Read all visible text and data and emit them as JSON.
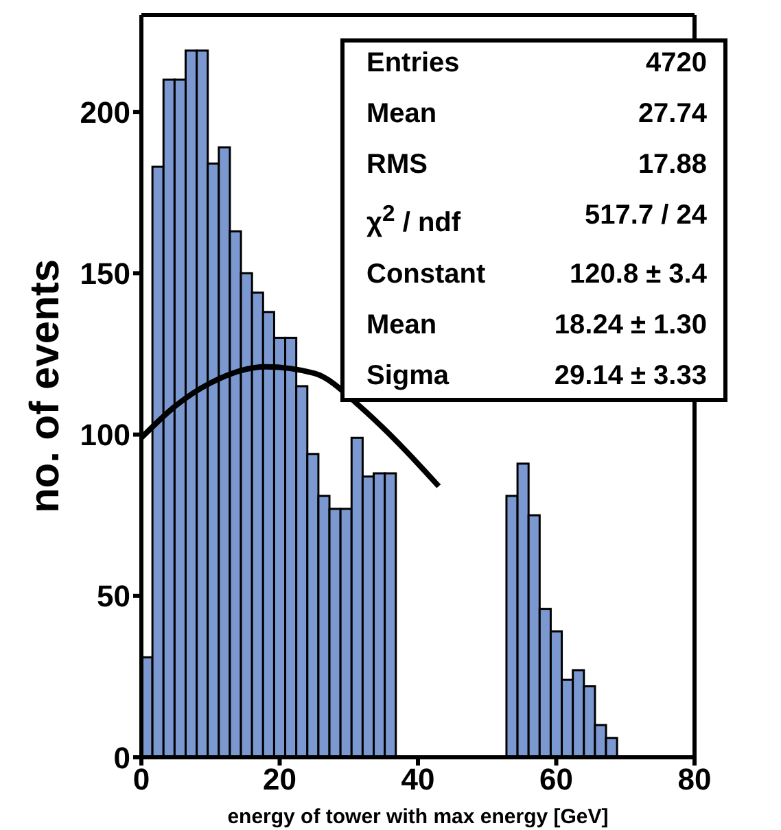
{
  "chart_data": {
    "type": "histogram",
    "xlabel": "energy of tower with max energy  [GeV]",
    "ylabel": "no. of events",
    "bins": [
      0,
      1.6,
      3.2,
      4.8,
      6.4,
      8,
      9.6,
      11.2,
      12.8,
      14.4,
      16,
      17.6,
      19.2,
      20.8,
      22.4,
      24,
      25.6,
      27.2,
      28.8,
      30.4,
      32,
      33.6,
      35.2,
      36.8,
      38.4,
      40,
      41.6,
      43.2,
      44.8,
      46.4,
      48,
      49.6,
      51.2,
      52.8,
      54.4,
      56,
      57.6,
      59.2,
      60.8,
      62.4,
      64,
      65.6,
      67.2,
      68.8,
      70.4,
      72,
      73.6,
      75.2,
      76.8,
      78.4,
      80
    ],
    "values": [
      31,
      183,
      210,
      210,
      219,
      219,
      184,
      189,
      163,
      150,
      144,
      138,
      130,
      130,
      115,
      94,
      81,
      77,
      77,
      99,
      87,
      88,
      88,
      null,
      null,
      null,
      null,
      null,
      null,
      null,
      null,
      null,
      null,
      81,
      91,
      75,
      46,
      39,
      24,
      27,
      22,
      10,
      6,
      0,
      0,
      0,
      0,
      0,
      0,
      0
    ],
    "color": "#7b99d0",
    "series": [
      {
        "type": "line",
        "color": "#000000",
        "x": [
          0,
          5,
          10,
          18,
          25,
          32,
          35,
          40,
          43
        ],
        "values": [
          99,
          109,
          116,
          121,
          119,
          108,
          102,
          91,
          84
        ]
      }
    ],
    "marker": "none",
    "line_style": "solid",
    "xlim": [
      0,
      80
    ],
    "ylim": [
      0,
      230
    ],
    "xticks": [
      0,
      20,
      40,
      60,
      80
    ],
    "yticks": [
      0,
      50,
      100,
      150,
      200
    ],
    "annotations": [
      "Entries",
      "4720",
      "Mean",
      "27.74",
      "RMS",
      "17.88",
      "χ$^{2}$ / ndf",
      "517.7 / 24",
      "Constant",
      "120.8 ± 3.4",
      "Mean",
      "18.24 ± 1.30",
      "Sigma",
      "29.14 ± 3.33"
    ]
  }
}
